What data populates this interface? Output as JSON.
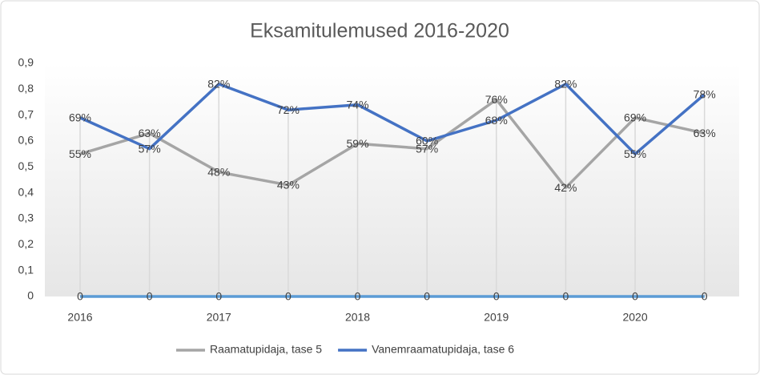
{
  "chart_data": {
    "type": "line",
    "title": "Eksamitulemused  2016-2020",
    "categories": [
      "2016",
      null,
      "2017",
      null,
      "2018",
      null,
      "2019",
      null,
      "2020",
      null
    ],
    "series": [
      {
        "name": "Raamatupidaja, tase 5",
        "color": "#a5a5a5",
        "values": [
          0.55,
          0.63,
          0.48,
          0.43,
          0.59,
          0.57,
          0.76,
          0.42,
          0.69,
          0.63
        ],
        "value_labels": [
          "55%",
          "63%",
          "48%",
          "43%",
          "59%",
          "57%",
          "76%",
          "42%",
          "69%",
          "63%"
        ]
      },
      {
        "name": "Vanemraamatupidaja, tase 6",
        "color": "#4472c4",
        "values": [
          0.69,
          0.57,
          0.82,
          0.72,
          0.74,
          0.6,
          0.68,
          0.82,
          0.55,
          0.78
        ],
        "value_labels": [
          "69%",
          "57%",
          "82%",
          "72%",
          "74%",
          "60%",
          "68%",
          "82%",
          "55%",
          "78%"
        ]
      },
      {
        "color": "#5b9bd5",
        "values": [
          0,
          0,
          0,
          0,
          0,
          0,
          0,
          0,
          0,
          0
        ]
      }
    ],
    "ylim": [
      0,
      0.9
    ],
    "yticks": [
      0,
      {
        "value": 0.1,
        "label": "0,1"
      },
      {
        "value": 0.2,
        "label": "0,2"
      },
      {
        "value": 0.3,
        "label": "0,3"
      },
      {
        "value": 0.4,
        "label": "0,4"
      },
      {
        "value": 0.5,
        "label": "0,5"
      },
      {
        "value": 0.6,
        "label": "0,6"
      },
      {
        "value": 0.7,
        "label": "0,7"
      },
      {
        "value": 0.8,
        "label": "0,8"
      },
      {
        "value": 0.9,
        "label": "0,9"
      }
    ],
    "legend": "bottom"
  }
}
